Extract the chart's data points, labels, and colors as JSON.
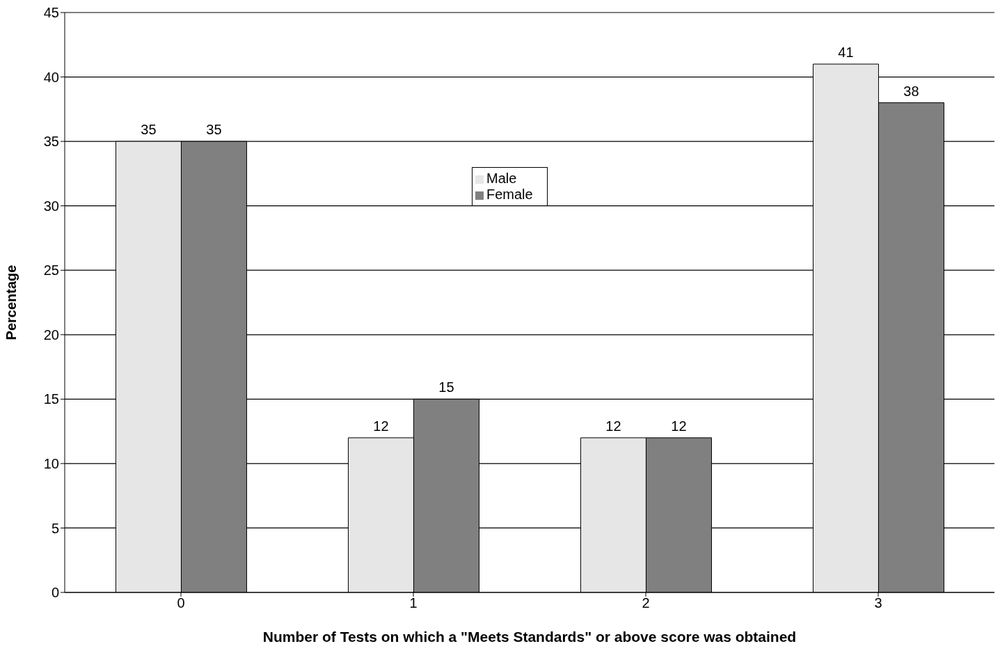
{
  "chart_data": {
    "type": "bar",
    "xlabel": "Number of Tests  on which a \"Meets Standards\" or above score was obtained",
    "ylabel": "Percentage",
    "categories": [
      "0",
      "1",
      "2",
      "3"
    ],
    "series": [
      {
        "name": "Male",
        "color": "#e6e6e6",
        "values": [
          35,
          12,
          12,
          41
        ]
      },
      {
        "name": "Female",
        "color": "#808080",
        "values": [
          35,
          15,
          12,
          38
        ]
      }
    ],
    "ylim": [
      0,
      45
    ],
    "yticks": [
      0,
      5,
      10,
      15,
      20,
      25,
      30,
      35,
      40,
      45
    ],
    "grid": "y",
    "legend": "top",
    "data_labels": true
  }
}
